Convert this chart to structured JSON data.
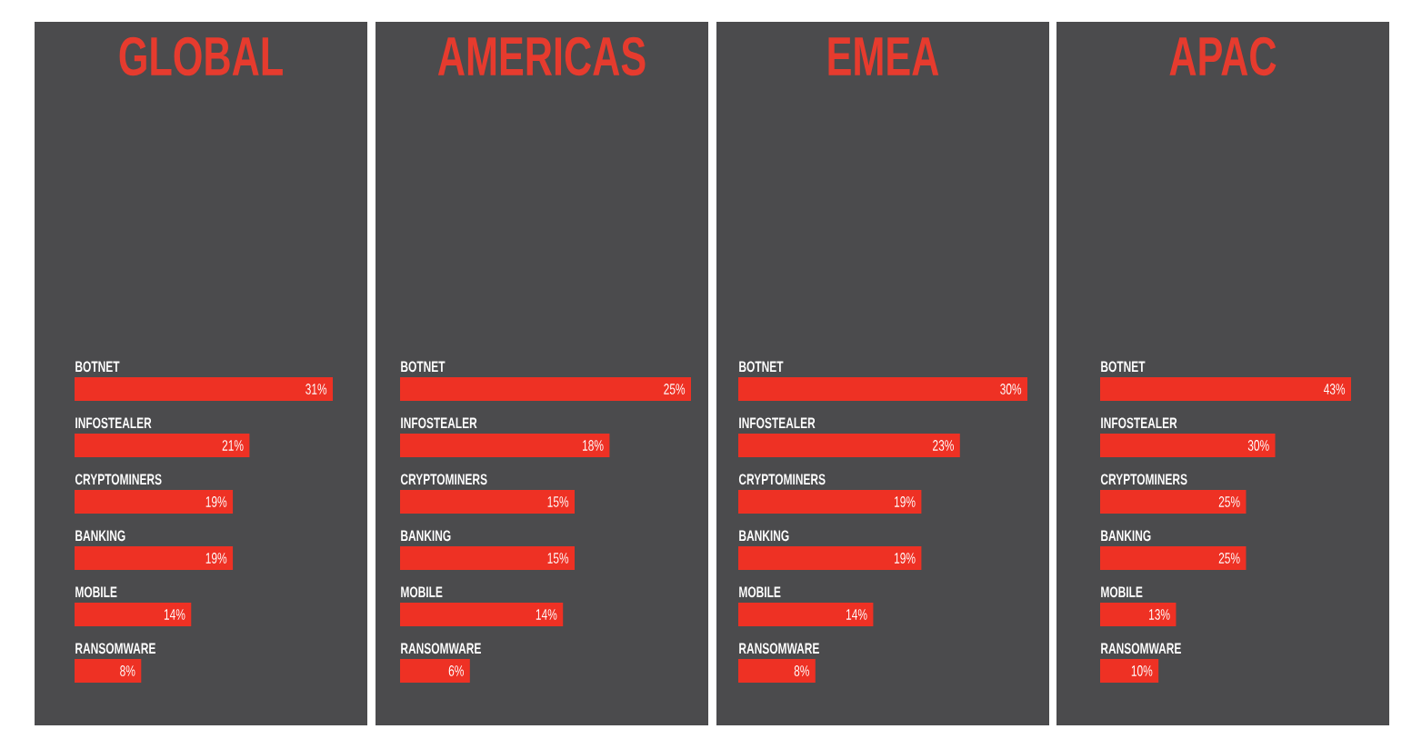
{
  "chart_data": [
    {
      "type": "bar",
      "orientation": "horizontal",
      "title": "GLOBAL",
      "categories": [
        "BOTNET",
        "INFOSTEALER",
        "CRYPTOMINERS",
        "BANKING",
        "MOBILE",
        "RANSOMWARE"
      ],
      "values": [
        31,
        21,
        19,
        19,
        14,
        8
      ],
      "value_labels": [
        "31%",
        "21%",
        "19%",
        "19%",
        "14%",
        "8%"
      ],
      "color": "#ee3124"
    },
    {
      "type": "bar",
      "orientation": "horizontal",
      "title": "AMERICAS",
      "categories": [
        "BOTNET",
        "INFOSTEALER",
        "CRYPTOMINERS",
        "BANKING",
        "MOBILE",
        "RANSOMWARE"
      ],
      "values": [
        25,
        18,
        15,
        15,
        14,
        6
      ],
      "value_labels": [
        "25%",
        "18%",
        "15%",
        "15%",
        "14%",
        "6%"
      ],
      "color": "#ee3124"
    },
    {
      "type": "bar",
      "orientation": "horizontal",
      "title": "EMEA",
      "categories": [
        "BOTNET",
        "INFOSTEALER",
        "CRYPTOMINERS",
        "BANKING",
        "MOBILE",
        "RANSOMWARE"
      ],
      "values": [
        30,
        23,
        19,
        19,
        14,
        8
      ],
      "value_labels": [
        "30%",
        "23%",
        "19%",
        "19%",
        "14%",
        "8%"
      ],
      "color": "#ee3124"
    },
    {
      "type": "bar",
      "orientation": "horizontal",
      "title": "APAC",
      "categories": [
        "BOTNET",
        "INFOSTEALER",
        "CRYPTOMINERS",
        "BANKING",
        "MOBILE",
        "RANSOMWARE"
      ],
      "values": [
        43,
        30,
        25,
        25,
        13,
        10
      ],
      "value_labels": [
        "43%",
        "30%",
        "25%",
        "25%",
        "13%",
        "10%"
      ],
      "color": "#ee3124"
    }
  ]
}
